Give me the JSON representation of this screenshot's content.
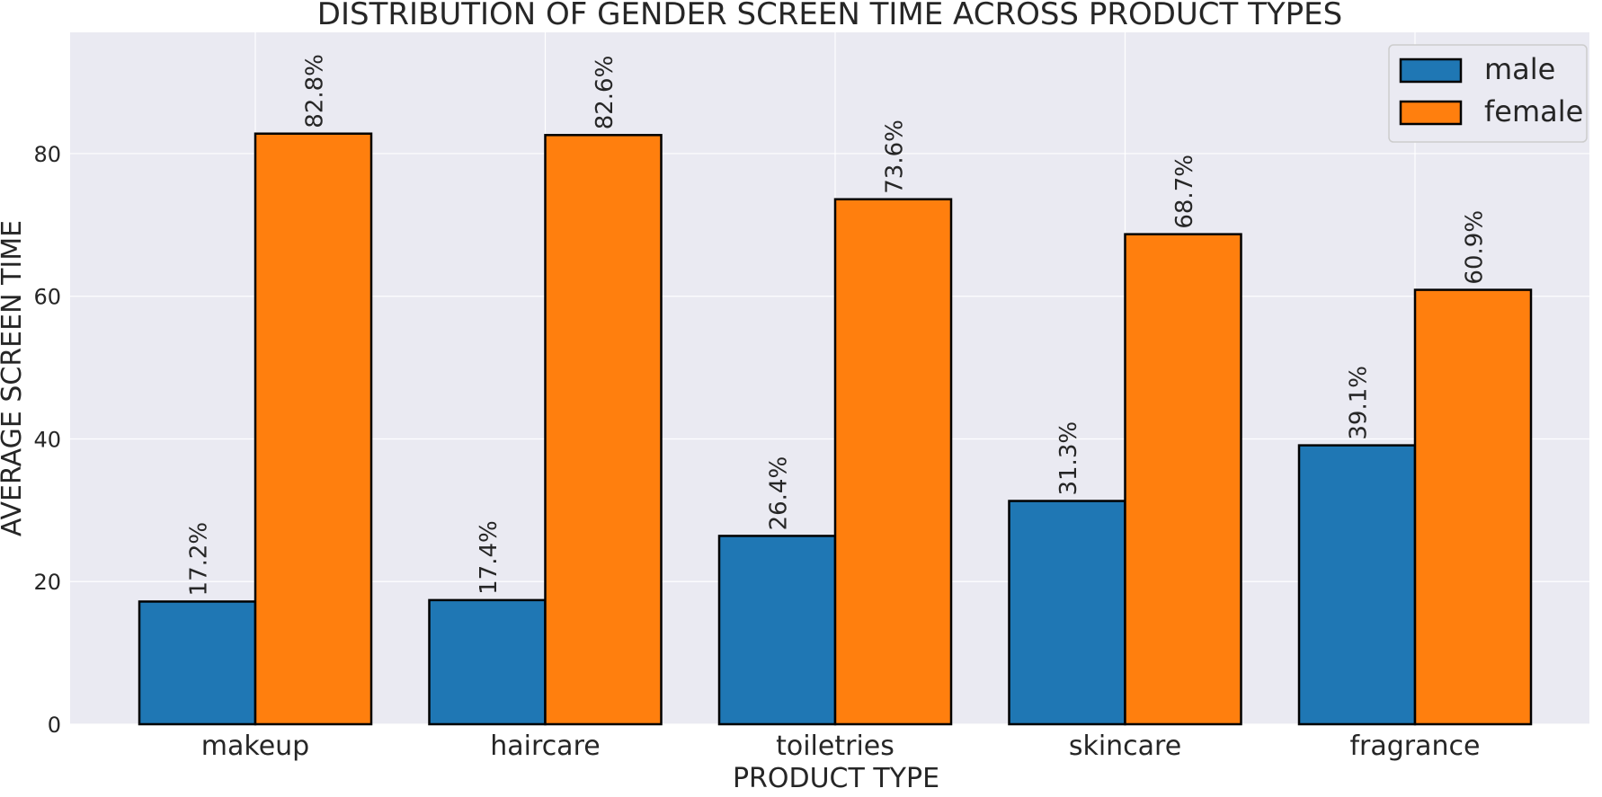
{
  "chart_data": {
    "type": "bar",
    "title": "DISTRIBUTION OF GENDER SCREEN TIME ACROSS PRODUCT TYPES",
    "xlabel": "PRODUCT TYPE",
    "ylabel": "AVERAGE SCREEN TIME",
    "categories": [
      "makeup",
      "haircare",
      "toiletries",
      "skincare",
      "fragrance"
    ],
    "series": [
      {
        "name": "male",
        "color": "#1f77b4",
        "values": [
          17.2,
          17.4,
          26.4,
          31.3,
          39.1
        ],
        "labels": [
          "17.2%",
          "17.4%",
          "26.4%",
          "31.3%",
          "39.1%"
        ]
      },
      {
        "name": "female",
        "color": "#ff7f0e",
        "values": [
          82.8,
          82.6,
          73.6,
          68.7,
          60.9
        ],
        "labels": [
          "82.8%",
          "82.6%",
          "73.6%",
          "68.7%",
          "60.9%"
        ]
      }
    ],
    "ylim": [
      0,
      97
    ],
    "yticks": [
      0,
      20,
      40,
      60,
      80
    ],
    "grid": true,
    "legend_position": "top-right",
    "plot_background": "#eaeaf2",
    "grid_color": "#ffffff",
    "bar_edge_color": "#000000"
  }
}
